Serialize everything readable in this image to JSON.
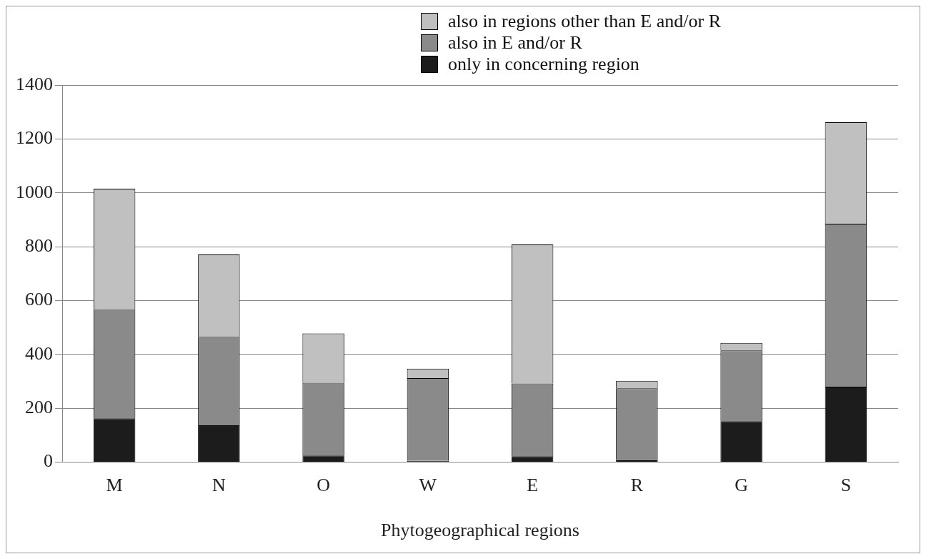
{
  "chart_data": {
    "type": "bar",
    "xlabel": "Phytogeographical regions",
    "categories": [
      "M",
      "N",
      "O",
      "W",
      "E",
      "R",
      "G",
      "S"
    ],
    "stacked": true,
    "series": [
      {
        "name": "only in concerning region",
        "color": "#1c1c1c",
        "values": [
          163,
          137,
          25,
          5,
          22,
          10,
          152,
          280
        ]
      },
      {
        "name": "also in E and/or R",
        "color": "#8a8a8a",
        "values": [
          405,
          328,
          270,
          307,
          270,
          264,
          263,
          605
        ]
      },
      {
        "name": "also in regions other than E and/or R",
        "color": "#c0c0c0",
        "values": [
          447,
          306,
          183,
          35,
          516,
          28,
          28,
          377
        ]
      }
    ],
    "ylim": [
      0,
      1400
    ],
    "yticks": [
      0,
      200,
      400,
      600,
      800,
      1000,
      1200,
      1400
    ],
    "grid": "y",
    "legend": "top right"
  }
}
